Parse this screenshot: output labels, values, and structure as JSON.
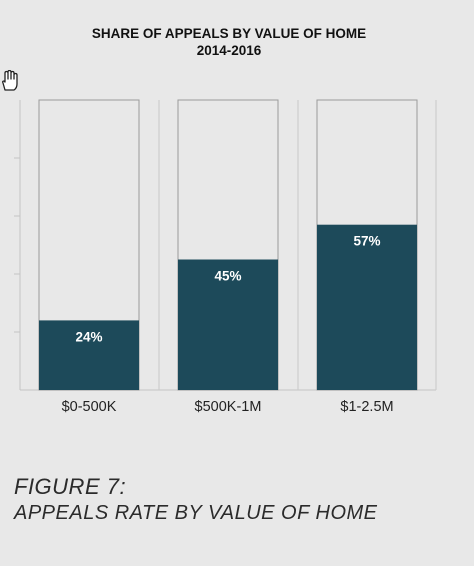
{
  "chart_data": {
    "type": "bar",
    "title": "SHARE OF APPEALS BY VALUE OF HOME",
    "subtitle": "2014-2016",
    "categories": [
      "$0-500K",
      "$500K-1M",
      "$1-2.5M"
    ],
    "values": [
      24,
      45,
      57
    ],
    "value_labels": [
      "24%",
      "45%",
      "57%"
    ],
    "ylim": [
      0,
      100
    ],
    "grid": false,
    "stacked_with_remainder": true,
    "colors": {
      "bar": "#1d4a5a",
      "remainder": "#e8e8e8",
      "outline": "#9a9a9a"
    }
  },
  "caption": {
    "line1": "FIGURE 7:",
    "line2": "APPEALS RATE BY VALUE OF HOME"
  },
  "icons": {
    "hand": "hand-cursor-icon"
  }
}
